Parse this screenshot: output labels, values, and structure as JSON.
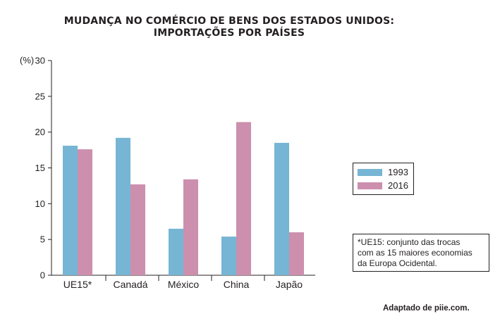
{
  "chart_data": {
    "type": "bar",
    "title": "MUDANÇA NO COMÉRCIO DE BENS DOS ESTADOS UNIDOS:",
    "subtitle": "IMPORTAÇÕES POR PAÍSES",
    "ylabel": "(%)",
    "ylim": [
      0,
      30
    ],
    "yticks": [
      "0",
      "5",
      "10",
      "15",
      "20",
      "25",
      "30"
    ],
    "categories": [
      "UE15*",
      "Canadá",
      "México",
      "China",
      "Japão"
    ],
    "series": [
      {
        "name": "1993",
        "color": "#76b5d3",
        "values": [
          18.1,
          19.2,
          6.5,
          5.4,
          18.5
        ]
      },
      {
        "name": "2016",
        "color": "#cc8fad",
        "values": [
          17.6,
          12.7,
          13.4,
          21.4,
          6.0
        ]
      }
    ],
    "legend_position": "right",
    "grid": false
  },
  "note": {
    "line1": "*UE15: conjunto das trocas",
    "line2": "com as 15 maiores economias",
    "line3": "da Europa Ocidental."
  },
  "source": "Adaptado de piie.com."
}
